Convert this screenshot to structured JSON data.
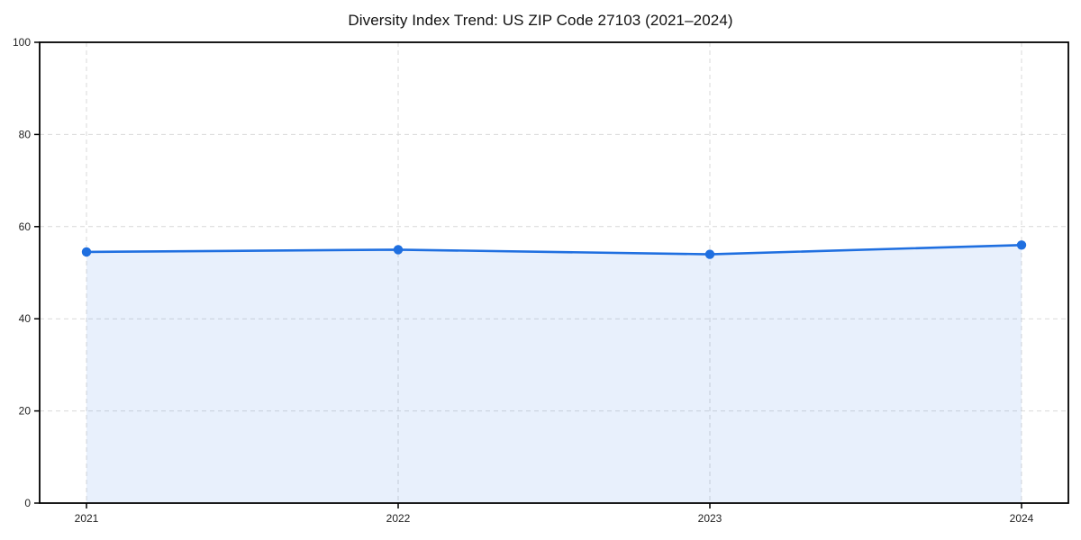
{
  "chart_data": {
    "type": "area",
    "title": "Diversity Index Trend: US ZIP Code 27103 (2021–2024)",
    "x": [
      2021,
      2022,
      2023,
      2024
    ],
    "xticklabels": [
      "2021",
      "2022",
      "2023",
      "2024"
    ],
    "series": [
      {
        "name": "Diversity Index",
        "values": [
          54.5,
          55,
          54,
          56
        ]
      }
    ],
    "xlabel": "",
    "ylabel": "",
    "ylim": [
      0,
      100
    ],
    "yticks": [
      0,
      20,
      40,
      60,
      80,
      100
    ],
    "grid": true,
    "grid_style": "dashed",
    "legend_position": "none",
    "colors": {
      "line": "#1f6fe0",
      "marker": "#1f6fe0",
      "fill": "rgba(31, 111, 224, 0.10)",
      "grid": "#d9d9d9",
      "spine": "#000000",
      "tick_label": "#222222",
      "title": "#111111",
      "background": "#ffffff"
    }
  }
}
